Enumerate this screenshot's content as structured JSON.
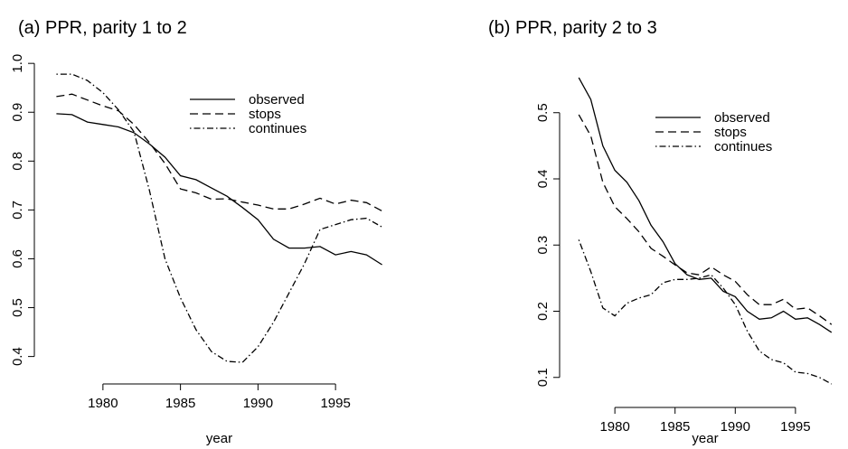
{
  "chart_data": [
    {
      "type": "line",
      "title": "(a) PPR, parity 1 to 2",
      "x_label": "year",
      "x": [
        1977,
        1978,
        1979,
        1980,
        1981,
        1982,
        1983,
        1984,
        1985,
        1986,
        1987,
        1988,
        1989,
        1990,
        1991,
        1992,
        1993,
        1994,
        1995,
        1996,
        1997,
        1998
      ],
      "series": [
        {
          "name": "observed",
          "color": "#000000",
          "dash": "solid",
          "values": [
            0.897,
            0.895,
            0.88,
            0.875,
            0.87,
            0.858,
            0.835,
            0.808,
            0.77,
            0.762,
            0.745,
            0.728,
            0.705,
            0.68,
            0.64,
            0.622,
            0.622,
            0.625,
            0.608,
            0.615,
            0.608,
            0.588
          ]
        },
        {
          "name": "stops",
          "color": "#000000",
          "dash": "dashed",
          "values": [
            0.932,
            0.937,
            0.925,
            0.913,
            0.903,
            0.875,
            0.838,
            0.795,
            0.743,
            0.735,
            0.722,
            0.723,
            0.716,
            0.71,
            0.702,
            0.702,
            0.712,
            0.724,
            0.712,
            0.72,
            0.715,
            0.698
          ]
        },
        {
          "name": "continues",
          "color": "#000000",
          "dash": "dotdash",
          "values": [
            0.978,
            0.978,
            0.965,
            0.94,
            0.905,
            0.86,
            0.74,
            0.6,
            0.52,
            0.455,
            0.41,
            0.39,
            0.388,
            0.42,
            0.47,
            0.53,
            0.59,
            0.66,
            0.67,
            0.68,
            0.683,
            0.665
          ]
        }
      ],
      "xlim": [
        1976.16,
        1998.84
      ],
      "xticks": [
        1980,
        1985,
        1990,
        1995
      ],
      "ylim": [
        0.366,
        1.004
      ],
      "yticks": [
        {
          "value": 0.4,
          "label": "0.4"
        },
        {
          "value": 0.5,
          "label": "0.5"
        },
        {
          "value": 0.6,
          "label": "0.6"
        },
        {
          "value": 0.7,
          "label": "0.7"
        },
        {
          "value": 0.8,
          "label": "0.8"
        },
        {
          "value": 0.9,
          "label": "0.9"
        },
        {
          "value": 1.0,
          "label": "1.0"
        }
      ],
      "legend": "top-right"
    },
    {
      "type": "line",
      "title": "(b) PPR, parity 2 to 3",
      "x_label": "year",
      "x": [
        1977,
        1978,
        1979,
        1980,
        1981,
        1982,
        1983,
        1984,
        1985,
        1986,
        1987,
        1988,
        1989,
        1990,
        1991,
        1992,
        1993,
        1994,
        1995,
        1996,
        1997,
        1998
      ],
      "series": [
        {
          "name": "observed",
          "color": "#000000",
          "dash": "solid",
          "values": [
            0.553,
            0.52,
            0.45,
            0.413,
            0.395,
            0.367,
            0.33,
            0.305,
            0.272,
            0.255,
            0.248,
            0.25,
            0.23,
            0.222,
            0.2,
            0.188,
            0.19,
            0.2,
            0.188,
            0.19,
            0.18,
            0.168
          ]
        },
        {
          "name": "stops",
          "color": "#000000",
          "dash": "dashed",
          "values": [
            0.497,
            0.465,
            0.395,
            0.358,
            0.34,
            0.32,
            0.295,
            0.283,
            0.27,
            0.258,
            0.255,
            0.267,
            0.255,
            0.245,
            0.225,
            0.21,
            0.21,
            0.218,
            0.203,
            0.205,
            0.193,
            0.18
          ]
        },
        {
          "name": "continues",
          "color": "#000000",
          "dash": "dotdash",
          "values": [
            0.308,
            0.26,
            0.205,
            0.193,
            0.212,
            0.22,
            0.225,
            0.243,
            0.248,
            0.248,
            0.25,
            0.255,
            0.235,
            0.21,
            0.17,
            0.14,
            0.127,
            0.122,
            0.108,
            0.106,
            0.1,
            0.09
          ]
        }
      ],
      "xlim": [
        1976.16,
        1998.84
      ],
      "xticks": [
        1980,
        1985,
        1990,
        1995
      ],
      "ylim": [
        0.071,
        0.572
      ],
      "yticks": [
        0.1,
        0.2,
        0.3,
        0.4,
        0.5
      ],
      "legend": "top-right"
    }
  ]
}
